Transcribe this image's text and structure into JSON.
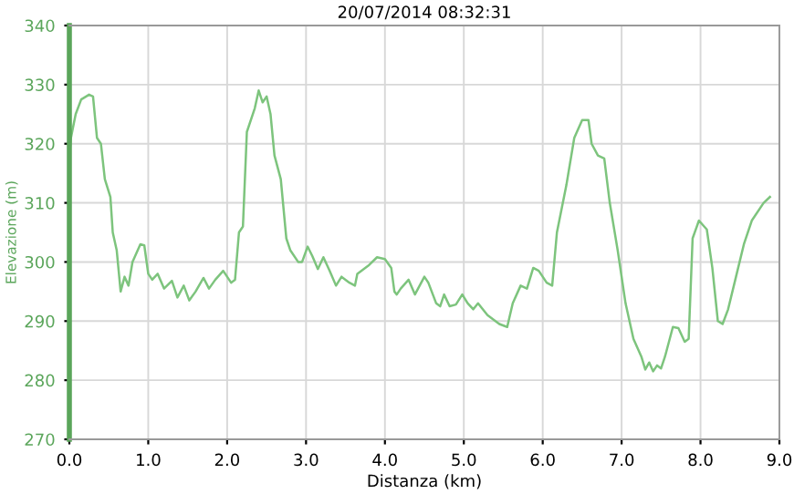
{
  "chart_data": {
    "type": "line",
    "title": "20/07/2014 08:32:31",
    "xlabel": "Distanza (km)",
    "ylabel": "Elevazione (m)",
    "xlim": [
      0,
      9
    ],
    "ylim": [
      270,
      340
    ],
    "xticks": [
      {
        "value": 0,
        "label": "0.0"
      },
      {
        "value": 1,
        "label": "1.0"
      },
      {
        "value": 2,
        "label": "2.0"
      },
      {
        "value": 3,
        "label": "3.0"
      },
      {
        "value": 4,
        "label": "4.0"
      },
      {
        "value": 5,
        "label": "5.0"
      },
      {
        "value": 6,
        "label": "6.0"
      },
      {
        "value": 7,
        "label": "7.0"
      },
      {
        "value": 8,
        "label": "8.0"
      },
      {
        "value": 9,
        "label": "9.0"
      }
    ],
    "yticks": [
      270,
      280,
      290,
      300,
      310,
      320,
      330,
      340
    ],
    "grid": true,
    "marker": "none",
    "line_style": "solid",
    "series": [
      {
        "color": "#7dc47d",
        "x": [
          0,
          0.02,
          0.08,
          0.15,
          0.25,
          0.3,
          0.35,
          0.4,
          0.45,
          0.52,
          0.55,
          0.6,
          0.65,
          0.7,
          0.75,
          0.8,
          0.9,
          0.95,
          1.0,
          1.05,
          1.12,
          1.2,
          1.3,
          1.37,
          1.45,
          1.52,
          1.6,
          1.7,
          1.77,
          1.85,
          1.95,
          2.05,
          2.1,
          2.15,
          2.2,
          2.25,
          2.35,
          2.4,
          2.45,
          2.5,
          2.55,
          2.6,
          2.68,
          2.75,
          2.8,
          2.9,
          2.95,
          3.02,
          3.08,
          3.15,
          3.22,
          3.3,
          3.38,
          3.45,
          3.55,
          3.62,
          3.65,
          3.8,
          3.9,
          4.0,
          4.08,
          4.12,
          4.15,
          4.2,
          4.3,
          4.38,
          4.5,
          4.55,
          4.65,
          4.7,
          4.75,
          4.82,
          4.9,
          4.98,
          5.05,
          5.12,
          5.18,
          5.3,
          5.45,
          5.55,
          5.62,
          5.72,
          5.8,
          5.88,
          5.95,
          6.05,
          6.12,
          6.18,
          6.3,
          6.4,
          6.5,
          6.58,
          6.62,
          6.7,
          6.78,
          6.85,
          6.95,
          7.05,
          7.15,
          7.25,
          7.3,
          7.35,
          7.4,
          7.45,
          7.5,
          7.55,
          7.65,
          7.72,
          7.8,
          7.85,
          7.9,
          7.98,
          8.08,
          8.15,
          8.22,
          8.28,
          8.35,
          8.45,
          8.55,
          8.65,
          8.8,
          8.88
        ],
        "values": [
          318,
          321,
          325,
          327.5,
          328.3,
          328,
          321,
          320,
          314,
          311,
          305,
          302,
          295,
          297.5,
          296,
          300,
          303,
          302.8,
          298,
          297,
          298,
          295.5,
          296.8,
          294,
          296,
          293.5,
          295,
          297.3,
          295.5,
          297,
          298.5,
          296.5,
          297,
          305,
          306,
          322,
          326,
          329,
          327,
          328,
          325,
          318,
          314,
          304,
          302,
          300,
          300,
          302.6,
          301,
          298.8,
          300.8,
          298.5,
          296,
          297.5,
          296.5,
          296,
          298,
          299.5,
          300.8,
          300.5,
          299,
          295,
          294.5,
          295.5,
          297,
          294.5,
          297.5,
          296.5,
          293,
          292.5,
          294.5,
          292.5,
          292.8,
          294.5,
          293,
          292,
          293,
          291,
          289.5,
          289,
          293,
          296,
          295.5,
          299,
          298.5,
          296.5,
          296,
          305,
          313,
          321,
          324,
          324,
          320,
          318,
          317.5,
          310,
          302,
          293,
          287,
          284,
          281.8,
          283,
          281.5,
          282.5,
          282,
          284,
          289,
          288.8,
          286.5,
          287,
          304,
          307,
          305.5,
          299,
          290,
          289.5,
          292,
          297.5,
          303,
          307,
          310,
          311
        ]
      }
    ]
  }
}
